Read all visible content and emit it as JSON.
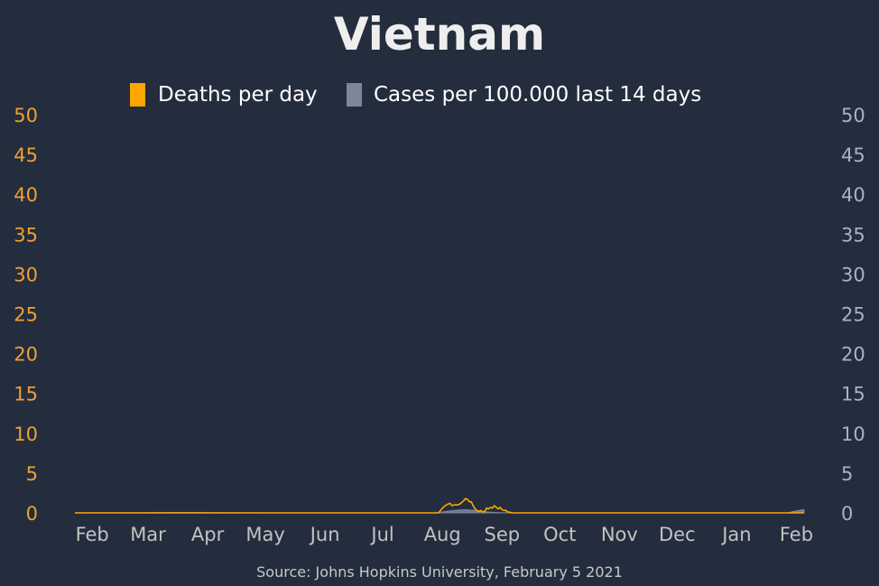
{
  "chart_data": {
    "type": "line",
    "title": "Vietnam",
    "source": "Source: Johns Hopkins University, February 5 2021",
    "legend": {
      "placement": "top-center",
      "entries": [
        {
          "label": "Deaths per day",
          "color": "#ffa500"
        },
        {
          "label": "Cases per 100.000 last 14 days",
          "color": "#7b879d"
        }
      ]
    },
    "y_left": {
      "ylim": [
        0,
        50
      ],
      "ticks": [
        "0",
        "5",
        "10",
        "15",
        "20",
        "25",
        "30",
        "35",
        "40",
        "45",
        "50"
      ],
      "color": "#f0a030"
    },
    "y_right": {
      "ylim": [
        0,
        50
      ],
      "ticks": [
        "0",
        "5",
        "10",
        "15",
        "20",
        "25",
        "30",
        "35",
        "40",
        "45",
        "50"
      ],
      "color": "#a6b2c6"
    },
    "x_ticks": [
      "Feb",
      "Mar",
      "Apr",
      "May",
      "Jun",
      "Jul",
      "Aug",
      "Sep",
      "Oct",
      "Nov",
      "Dec",
      "Jan",
      "Feb"
    ],
    "x_range": [
      "2020-01-23",
      "2021-02-05"
    ],
    "grid": false,
    "series": [
      {
        "name": "Deaths per day",
        "kind": "line",
        "color": "#ffa500",
        "points": [
          [
            "2020-01-23",
            0
          ],
          [
            "2020-07-30",
            0
          ],
          [
            "2020-07-31",
            0.3
          ],
          [
            "2020-08-01",
            0.6
          ],
          [
            "2020-08-02",
            0.8
          ],
          [
            "2020-08-03",
            1.0
          ],
          [
            "2020-08-04",
            1.1
          ],
          [
            "2020-08-05",
            1.2
          ],
          [
            "2020-08-06",
            0.9
          ],
          [
            "2020-08-07",
            1.0
          ],
          [
            "2020-08-08",
            1.0
          ],
          [
            "2020-08-09",
            1.0
          ],
          [
            "2020-08-10",
            1.1
          ],
          [
            "2020-08-11",
            1.3
          ],
          [
            "2020-08-12",
            1.5
          ],
          [
            "2020-08-13",
            1.8
          ],
          [
            "2020-08-14",
            1.7
          ],
          [
            "2020-08-15",
            1.4
          ],
          [
            "2020-08-16",
            1.4
          ],
          [
            "2020-08-17",
            0.9
          ],
          [
            "2020-08-18",
            0.5
          ],
          [
            "2020-08-19",
            0.3
          ],
          [
            "2020-08-20",
            0.2
          ],
          [
            "2020-08-21",
            0.3
          ],
          [
            "2020-08-22",
            0.1
          ],
          [
            "2020-08-23",
            0.2
          ],
          [
            "2020-08-24",
            0.6
          ],
          [
            "2020-08-25",
            0.5
          ],
          [
            "2020-08-26",
            0.7
          ],
          [
            "2020-08-27",
            0.6
          ],
          [
            "2020-08-28",
            0.9
          ],
          [
            "2020-08-29",
            0.7
          ],
          [
            "2020-08-30",
            0.5
          ],
          [
            "2020-08-31",
            0.7
          ],
          [
            "2020-09-01",
            0.4
          ],
          [
            "2020-09-02",
            0.3
          ],
          [
            "2020-09-03",
            0.3
          ],
          [
            "2020-09-04",
            0.1
          ],
          [
            "2020-09-05",
            0.1
          ],
          [
            "2020-09-06",
            0
          ],
          [
            "2021-02-05",
            0
          ]
        ]
      },
      {
        "name": "Cases per 100.000 last 14 days",
        "kind": "area",
        "color": "#7b879d",
        "points": [
          [
            "2020-01-23",
            0
          ],
          [
            "2020-03-20",
            0.05
          ],
          [
            "2020-04-10",
            0.03
          ],
          [
            "2020-05-01",
            0
          ],
          [
            "2020-07-28",
            0
          ],
          [
            "2020-08-01",
            0.12
          ],
          [
            "2020-08-05",
            0.25
          ],
          [
            "2020-08-09",
            0.35
          ],
          [
            "2020-08-13",
            0.4
          ],
          [
            "2020-08-17",
            0.33
          ],
          [
            "2020-08-21",
            0.2
          ],
          [
            "2020-08-25",
            0.1
          ],
          [
            "2020-08-30",
            0.04
          ],
          [
            "2020-09-05",
            0
          ],
          [
            "2021-01-27",
            0
          ],
          [
            "2021-01-30",
            0.15
          ],
          [
            "2021-02-02",
            0.3
          ],
          [
            "2021-02-05",
            0.4
          ]
        ]
      }
    ]
  }
}
